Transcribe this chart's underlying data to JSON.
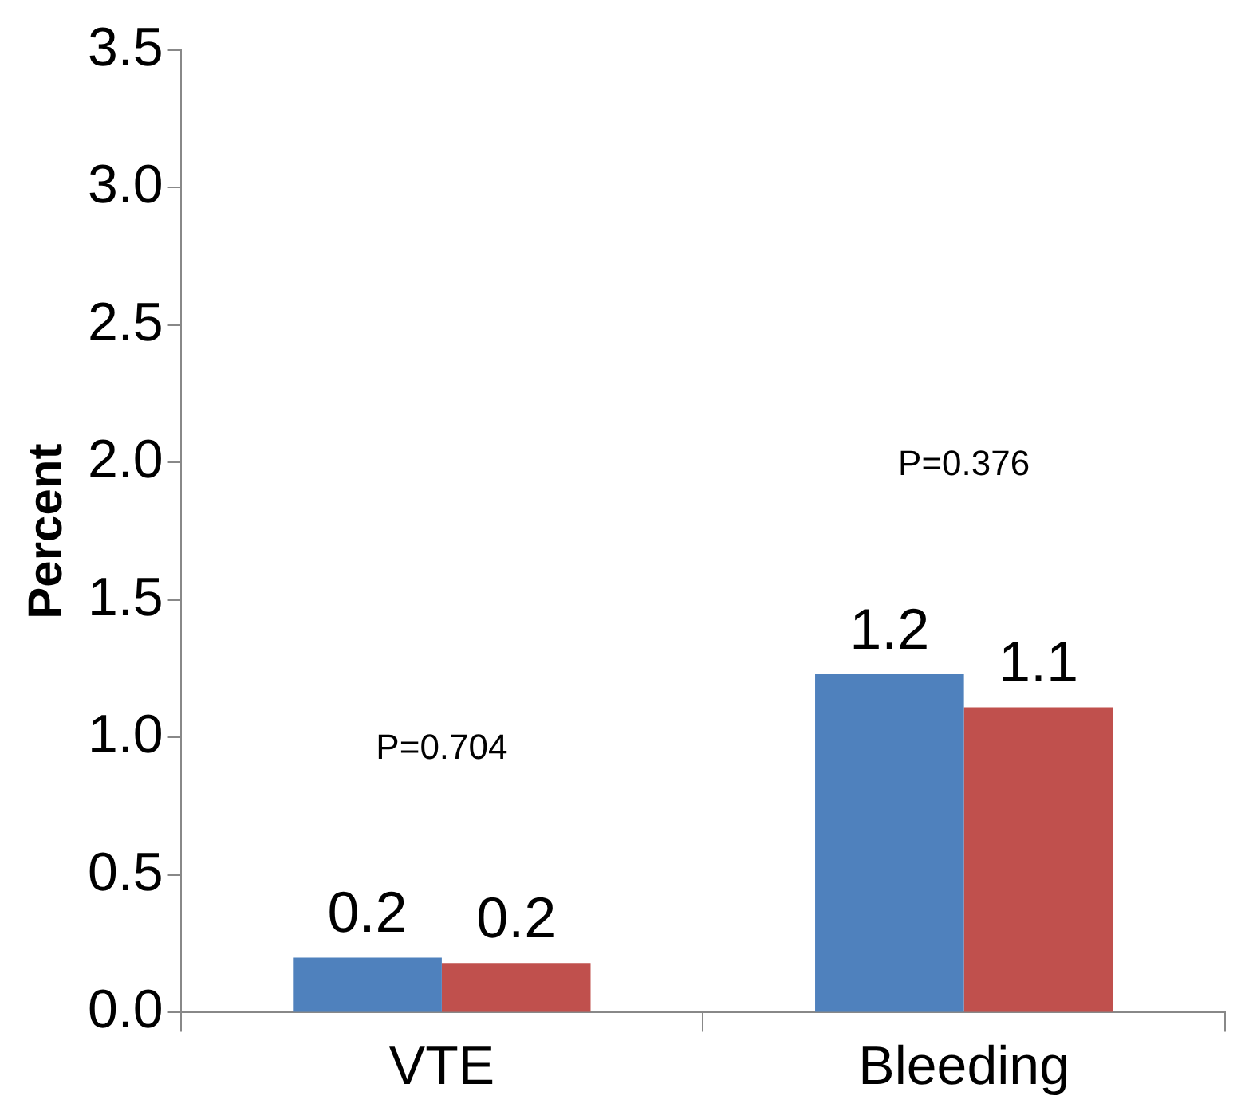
{
  "chart_data": {
    "type": "bar",
    "ylabel": "Percent",
    "categories": [
      "VTE",
      "Bleeding"
    ],
    "series": [
      {
        "color": "#4f81bd",
        "values": [
          0.2,
          1.23
        ],
        "value_labels": [
          "0.2",
          "1.2"
        ]
      },
      {
        "color": "#c0504d",
        "values": [
          0.18,
          1.11
        ],
        "value_labels": [
          "0.2",
          "1.1"
        ]
      }
    ],
    "ylim": [
      0,
      3.5
    ],
    "yticks": [
      {
        "value": 0,
        "label": "0.0"
      },
      {
        "value": 0.5,
        "label": "0.5"
      },
      {
        "value": 1,
        "label": "1.0"
      },
      {
        "value": 1.5,
        "label": "1.5"
      },
      {
        "value": 2,
        "label": "2.0"
      },
      {
        "value": 2.5,
        "label": "2.5"
      },
      {
        "value": 3,
        "label": "3.0"
      },
      {
        "value": 3.5,
        "label": "3.5"
      }
    ],
    "annotations": [
      "P=0.704",
      "P=0.376"
    ],
    "grid": false,
    "legend": false
  }
}
